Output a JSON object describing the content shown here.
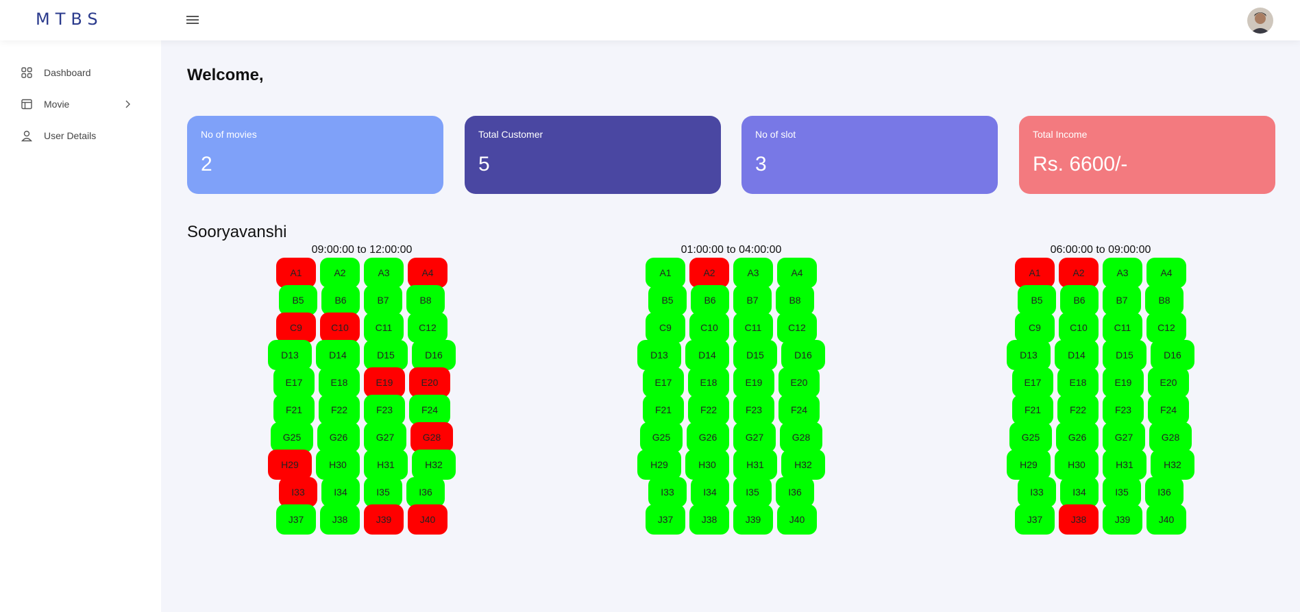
{
  "brand": "MTBS",
  "sidebar": {
    "items": [
      {
        "label": "Dashboard",
        "icon": "grid-icon"
      },
      {
        "label": "Movie",
        "icon": "layout-icon"
      },
      {
        "label": "User Details",
        "icon": "user-icon"
      }
    ]
  },
  "welcome": "Welcome,",
  "cards": [
    {
      "label": "No of movies",
      "value": "2",
      "color": "#7fa1f9"
    },
    {
      "label": "Total Customer",
      "value": "5",
      "color": "#4a47a2"
    },
    {
      "label": "No of slot",
      "value": "3",
      "color": "#7878e6"
    },
    {
      "label": "Total Income",
      "value": "Rs. 6600/-",
      "color": "#f37a7f"
    }
  ],
  "colors": {
    "available": "#00ff00",
    "booked": "#ff0000"
  },
  "movie": {
    "title": "Sooryavanshi",
    "slots": [
      {
        "time": "09:00:00 to 12:00:00",
        "booked": [
          "A1",
          "A4",
          "C9",
          "C10",
          "E19",
          "E20",
          "G28",
          "H29",
          "I33",
          "J39",
          "J40"
        ]
      },
      {
        "time": "01:00:00 to 04:00:00",
        "booked": [
          "A2"
        ]
      },
      {
        "time": "06:00:00 to 09:00:00",
        "booked": [
          "A1",
          "A2",
          "J38"
        ]
      }
    ],
    "rows": [
      [
        "A1",
        "A2",
        "A3",
        "A4"
      ],
      [
        "B5",
        "B6",
        "B7",
        "B8"
      ],
      [
        "C9",
        "C10",
        "C11",
        "C12"
      ],
      [
        "D13",
        "D14",
        "D15",
        "D16"
      ],
      [
        "E17",
        "E18",
        "E19",
        "E20"
      ],
      [
        "F21",
        "F22",
        "F23",
        "F24"
      ],
      [
        "G25",
        "G26",
        "G27",
        "G28"
      ],
      [
        "H29",
        "H30",
        "H31",
        "H32"
      ],
      [
        "I33",
        "I34",
        "I35",
        "I36"
      ],
      [
        "J37",
        "J38",
        "J39",
        "J40"
      ]
    ]
  }
}
